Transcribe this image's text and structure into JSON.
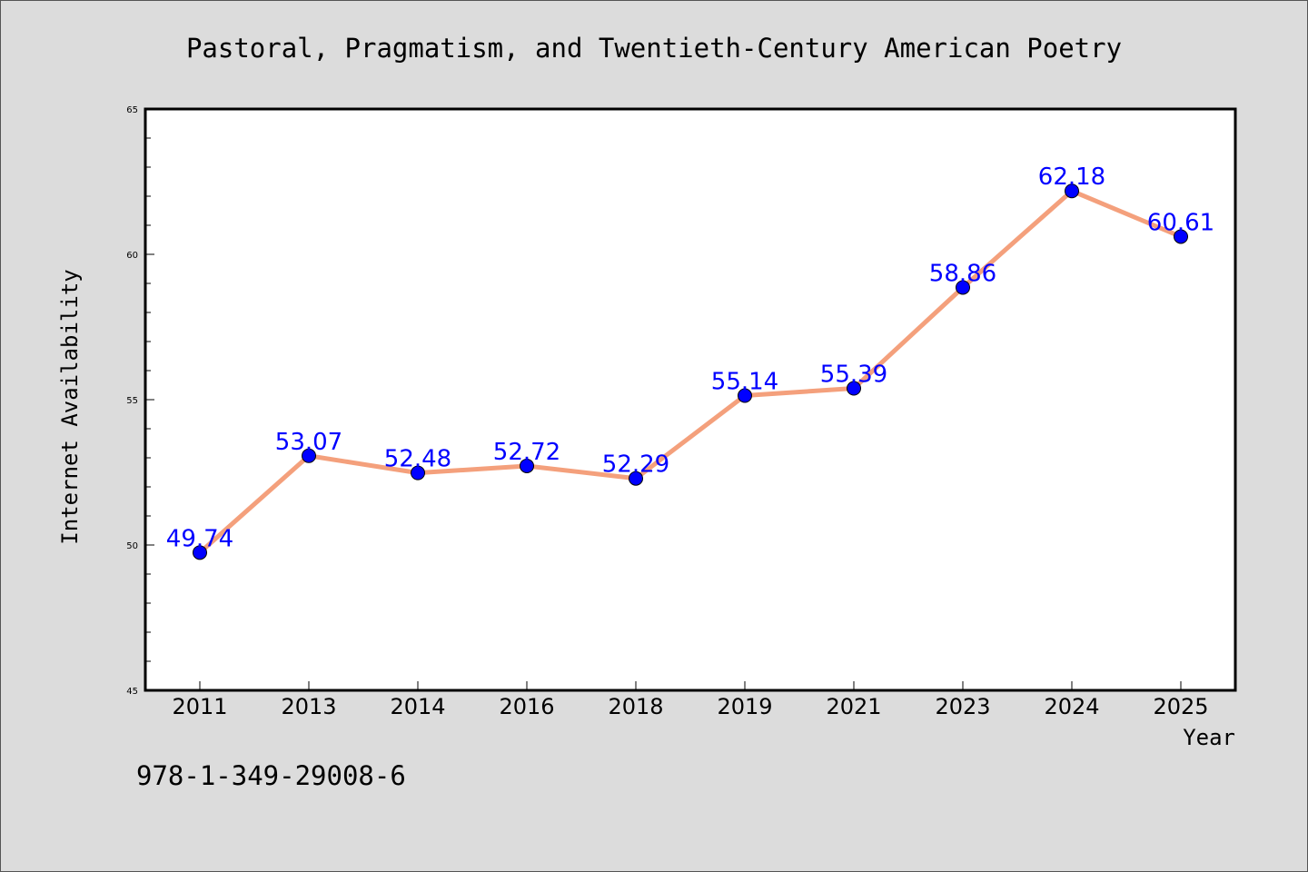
{
  "chart_data": {
    "type": "line",
    "title": "Pastoral, Pragmatism, and Twentieth-Century American Poetry",
    "xlabel": "Year",
    "ylabel": "Internet Availability",
    "categories": [
      "2011",
      "2013",
      "2014",
      "2016",
      "2018",
      "2019",
      "2021",
      "2023",
      "2024",
      "2025"
    ],
    "series": [
      {
        "values": [
          49.74,
          53.07,
          52.48,
          52.72,
          52.29,
          55.14,
          55.39,
          58.86,
          62.18,
          60.61
        ]
      }
    ],
    "data_labels": [
      "49.74",
      "53.07",
      "52.48",
      "52.72",
      "52.29",
      "55.14",
      "55.39",
      "58.86",
      "62.18",
      "60.61"
    ],
    "yticks": [
      45,
      50,
      55,
      60,
      65
    ],
    "ylim": [
      45,
      65
    ],
    "grid": false,
    "line_color": "#f4a07c",
    "marker_color": "#0000ff",
    "label_color": "#0000ff"
  },
  "footer": {
    "isbn": "978-1-349-29008-6"
  }
}
